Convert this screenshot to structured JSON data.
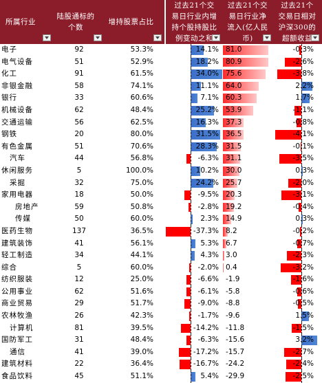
{
  "headers": [
    {
      "label": "所属行业"
    },
    {
      "label": "陆股通标的个数"
    },
    {
      "label": "增持股票占比"
    },
    {
      "label": "过去21个交易日行业内增持个股持股比例变动之和"
    },
    {
      "label": "过去21个交易日行业净流入(亿人民币)"
    },
    {
      "label": "过去21个交易日相对沪深300的超额收益"
    }
  ],
  "rows": [
    {
      "industry": "电子",
      "count": "92",
      "ratio": "53.3%",
      "chg": "14.1%",
      "chg_val": 14.1,
      "flow": "81.0",
      "flow_val": 81.0,
      "excess": "-0.3%",
      "excess_val": -0.3
    },
    {
      "industry": "电气设备",
      "count": "51",
      "ratio": "52.9%",
      "chg": "18.2%",
      "chg_val": 18.2,
      "flow": "80.9",
      "flow_val": 80.9,
      "excess": "-2.6%",
      "excess_val": -2.6
    },
    {
      "industry": "化工",
      "count": "91",
      "ratio": "61.5%",
      "chg": "34.0%",
      "chg_val": 34.0,
      "flow": "75.6",
      "flow_val": 75.6,
      "excess": "-3.8%",
      "excess_val": -3.8
    },
    {
      "industry": "非银金融",
      "count": "58",
      "ratio": "74.1%",
      "chg": "11.1%",
      "chg_val": 11.1,
      "flow": "64.0",
      "flow_val": 64.0,
      "excess": "2.2%",
      "excess_val": 2.2
    },
    {
      "industry": "银行",
      "count": "33",
      "ratio": "60.6%",
      "chg": "7.1%",
      "chg_val": 7.1,
      "flow": "60.3",
      "flow_val": 60.3,
      "excess": "1.7%",
      "excess_val": 1.7
    },
    {
      "industry": "机械设备",
      "count": "62",
      "ratio": "48.4%",
      "chg": "25.2%",
      "chg_val": 25.2,
      "flow": "53.9",
      "flow_val": 53.9,
      "excess": "-1.1%",
      "excess_val": -1.1
    },
    {
      "industry": "交通运输",
      "count": "56",
      "ratio": "62.5%",
      "chg": "16.3%",
      "chg_val": 16.3,
      "flow": "37.3",
      "flow_val": 37.3,
      "excess": "-0.8%",
      "excess_val": -0.8
    },
    {
      "industry": "钢铁",
      "count": "20",
      "ratio": "80.0%",
      "chg": "31.5%",
      "chg_val": 31.5,
      "flow": "36.5",
      "flow_val": 36.5,
      "excess": "-4.1%",
      "excess_val": -4.1
    },
    {
      "industry": "有色金属",
      "count": "51",
      "ratio": "70.6%",
      "chg": "28.3%",
      "chg_val": 28.3,
      "flow": "31.5",
      "flow_val": 31.5,
      "excess": "-0.1%",
      "excess_val": -0.1
    },
    {
      "industry": "汽车",
      "count": "44",
      "ratio": "56.8%",
      "chg": "-6.3%",
      "chg_val": -6.3,
      "flow": "31.1",
      "flow_val": 31.1,
      "excess": "-3.5%",
      "excess_val": -3.5
    },
    {
      "industry": "休闲服务",
      "count": "5",
      "ratio": "100.0%",
      "chg": "10.2%",
      "chg_val": 10.2,
      "flow": "30.0",
      "flow_val": 30.0,
      "excess": "0.3%",
      "excess_val": 0.3
    },
    {
      "industry": "采掘",
      "count": "32",
      "ratio": "75.0%",
      "chg": "24.2%",
      "chg_val": 24.2,
      "flow": "25.7",
      "flow_val": 25.7,
      "excess": "-2.0%",
      "excess_val": -2.0
    },
    {
      "industry": "家用电器",
      "count": "18",
      "ratio": "50.0%",
      "chg": "-9.5%",
      "chg_val": -9.5,
      "flow": "20.3",
      "flow_val": 20.3,
      "excess": "-3.1%",
      "excess_val": -3.1
    },
    {
      "industry": "房地产",
      "count": "59",
      "ratio": "50.8%",
      "chg": "-2.8%",
      "chg_val": -2.8,
      "flow": "19.2",
      "flow_val": 19.2,
      "excess": "-0.4%",
      "excess_val": -0.4
    },
    {
      "industry": "传媒",
      "count": "50",
      "ratio": "60.0%",
      "chg": "2.3%",
      "chg_val": 2.3,
      "flow": "14.9",
      "flow_val": 14.9,
      "excess": "0.3%",
      "excess_val": 0.3
    },
    {
      "industry": "医药生物",
      "count": "137",
      "ratio": "36.5%",
      "chg": "-37.3%",
      "chg_val": -37.3,
      "flow": "8.2",
      "flow_val": 8.2,
      "excess": "-0.2%",
      "excess_val": -0.2
    },
    {
      "industry": "建筑装饰",
      "count": "41",
      "ratio": "56.1%",
      "chg": "5.3%",
      "chg_val": 5.3,
      "flow": "6.7",
      "flow_val": 6.7,
      "excess": "-0.7%",
      "excess_val": -0.7
    },
    {
      "industry": "轻工制造",
      "count": "34",
      "ratio": "44.1%",
      "chg": "4.3%",
      "chg_val": 4.3,
      "flow": "3.0",
      "flow_val": 3.0,
      "excess": "-2.3%",
      "excess_val": -2.3
    },
    {
      "industry": "综合",
      "count": "5",
      "ratio": "60.0%",
      "chg": "-2.0%",
      "chg_val": -2.0,
      "flow": "0.4",
      "flow_val": 0.4,
      "excess": "-3.2%",
      "excess_val": -3.2
    },
    {
      "industry": "纺织服装",
      "count": "12",
      "ratio": "25.0%",
      "chg": "-6.6%",
      "chg_val": -6.6,
      "flow": "-1.9",
      "flow_val": -1.9,
      "excess": "-1.6%",
      "excess_val": -1.6
    },
    {
      "industry": "公用事业",
      "count": "62",
      "ratio": "51.6%",
      "chg": "-6.1%",
      "chg_val": -6.1,
      "flow": "-5.8",
      "flow_val": -5.8,
      "excess": "-0.6%",
      "excess_val": -0.6
    },
    {
      "industry": "商业贸易",
      "count": "29",
      "ratio": "51.7%",
      "chg": "-9.0%",
      "chg_val": -9.0,
      "flow": "-8.8",
      "flow_val": -8.8,
      "excess": "-0.5%",
      "excess_val": -0.5
    },
    {
      "industry": "农林牧渔",
      "count": "26",
      "ratio": "42.3%",
      "chg": "-1.7%",
      "chg_val": -1.7,
      "flow": "-9.6",
      "flow_val": -9.6,
      "excess": "1.5%",
      "excess_val": 1.5
    },
    {
      "industry": "计算机",
      "count": "81",
      "ratio": "39.5%",
      "chg": "-14.2%",
      "chg_val": -14.2,
      "flow": "-11.8",
      "flow_val": -11.8,
      "excess": "-1.5%",
      "excess_val": -1.5
    },
    {
      "industry": "国防军工",
      "count": "31",
      "ratio": "48.4%",
      "chg": "-6.3%",
      "chg_val": -6.3,
      "flow": "-15.6",
      "flow_val": -15.6,
      "excess": "3.2%",
      "excess_val": 3.2
    },
    {
      "industry": "通信",
      "count": "41",
      "ratio": "39.0%",
      "chg": "-17.2%",
      "chg_val": -17.2,
      "flow": "-15.7",
      "flow_val": -15.7,
      "excess": "-2.7%",
      "excess_val": -2.7
    },
    {
      "industry": "建筑材料",
      "count": "22",
      "ratio": "36.4%",
      "chg": "-16.7%",
      "chg_val": -16.7,
      "flow": "-24.2",
      "flow_val": -24.2,
      "excess": "-2.4%",
      "excess_val": -2.4
    },
    {
      "industry": "食品饮料",
      "count": "45",
      "ratio": "51.1%",
      "chg": "5.4%",
      "chg_val": 5.4,
      "flow": "-29.9",
      "flow_val": -29.9,
      "excess": "-2.5%",
      "excess_val": -2.5
    }
  ],
  "colors": {
    "header_bg": "#8b1c2a",
    "positive_bar": "#4f86d6",
    "negative_bar": "#ff0000",
    "flow_bar": "#ff2a2a"
  },
  "icons": {
    "filter": "dropdown-filter-icon",
    "filter_active": "filter-sort-icon"
  }
}
